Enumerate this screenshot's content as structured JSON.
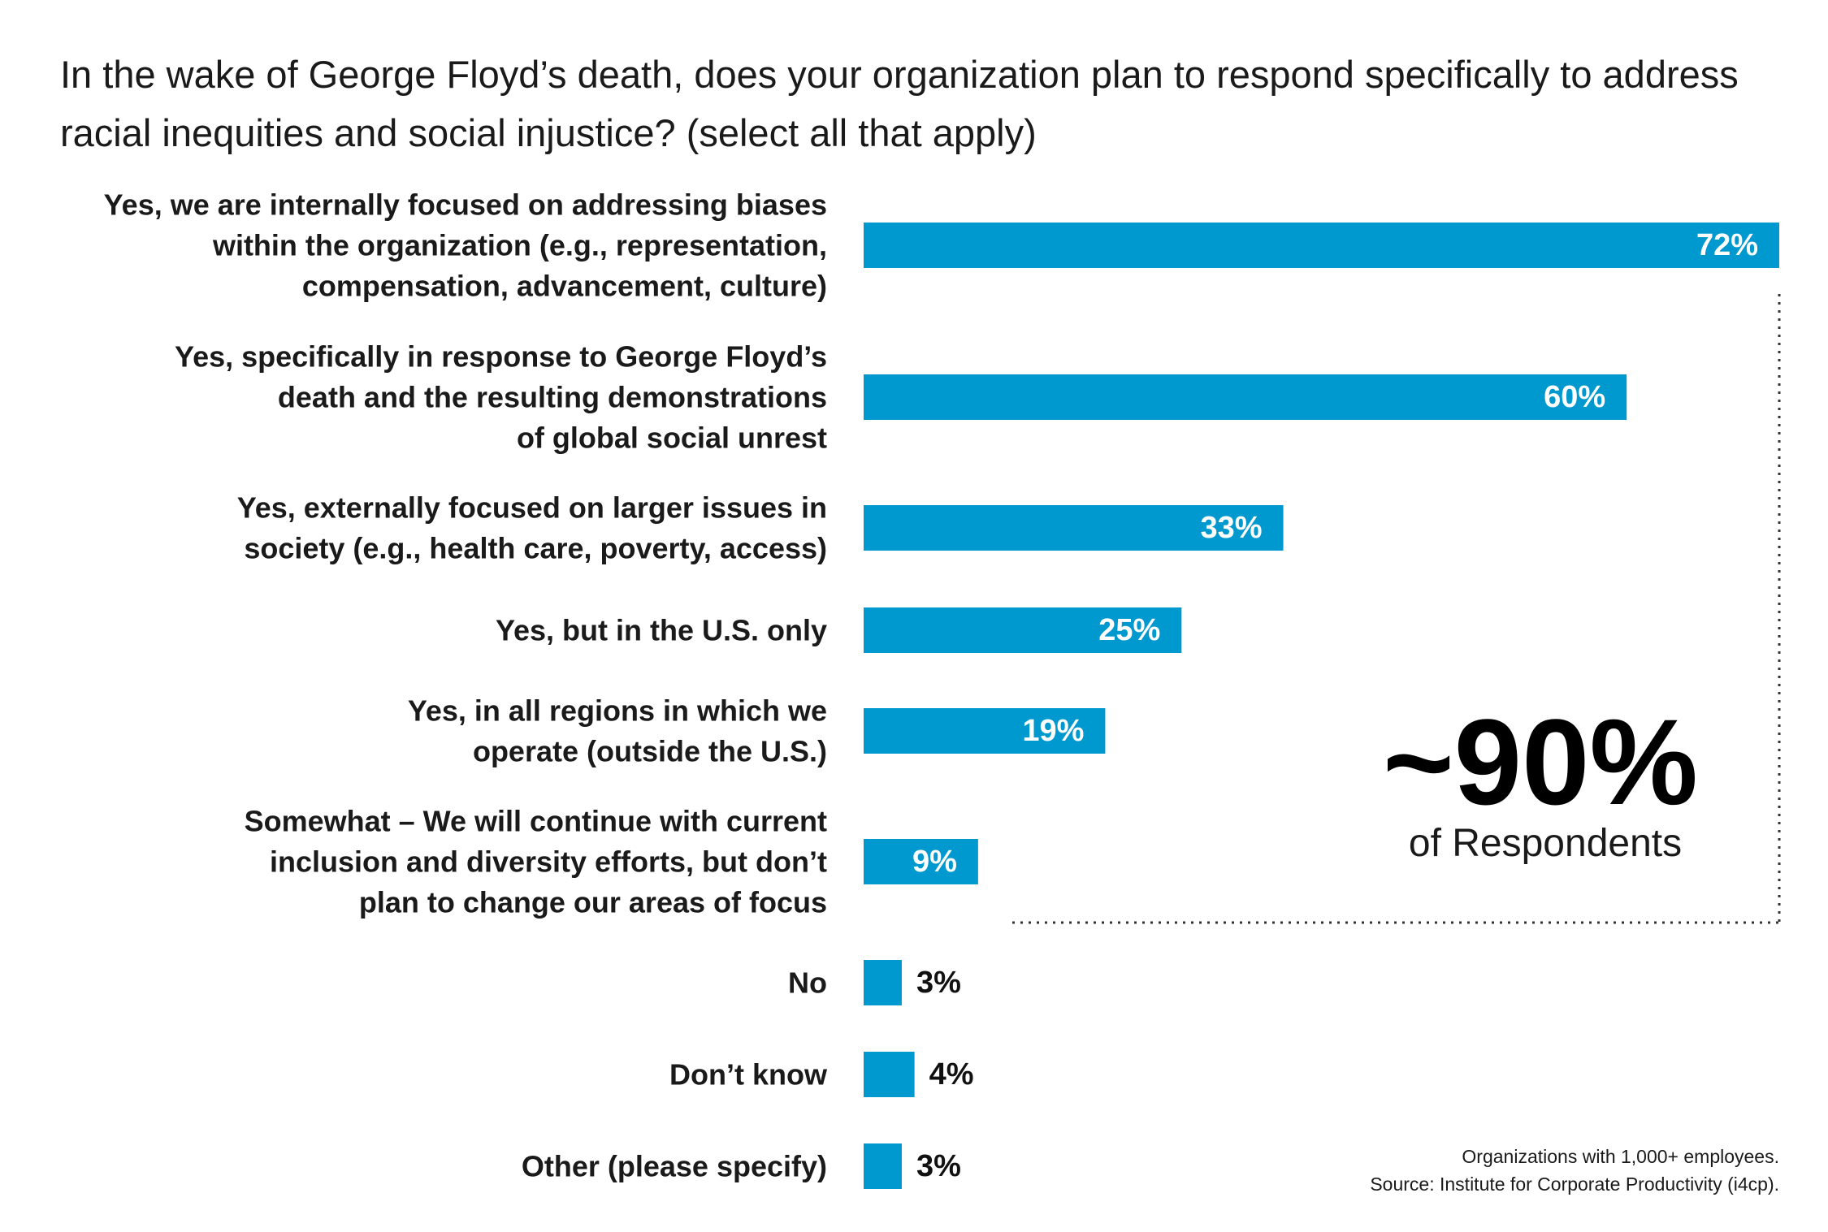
{
  "title": "In the wake of George Floyd’s death, does your organization plan to respond specifically to address racial inequities and social injustice? (select all that apply)",
  "colors": {
    "bar": "#0099cf",
    "text": "#1a1a1a",
    "bracket": "#333333"
  },
  "chart_data": {
    "type": "bar",
    "orientation": "horizontal",
    "categories": [
      [
        "Yes, we are internally focused on addressing biases",
        "within the organization (e.g., representation,",
        "compensation, advancement, culture)"
      ],
      [
        "Yes, specifically in response to George Floyd’s",
        "death and the resulting demonstrations",
        "of global social unrest"
      ],
      [
        "Yes, externally focused on larger issues in",
        "society (e.g., health care, poverty, access)"
      ],
      [
        "Yes, but in the U.S. only"
      ],
      [
        "Yes, in all regions in which we",
        "operate (outside the U.S.)"
      ],
      [
        "Somewhat – We will continue with current",
        "inclusion and diversity efforts, but don’t",
        "plan to change our areas of focus"
      ],
      [
        "No"
      ],
      [
        "Don’t know"
      ],
      [
        "Other (please specify)"
      ]
    ],
    "values": [
      72,
      60,
      33,
      25,
      19,
      9,
      3,
      4,
      3
    ],
    "value_labels": [
      "72%",
      "60%",
      "33%",
      "25%",
      "19%",
      "9%",
      "3%",
      "4%",
      "3%"
    ],
    "xlim": [
      0,
      72
    ],
    "grid": false,
    "legend": false
  },
  "callout": {
    "value": "~90%",
    "caption": "of Respondents"
  },
  "footnotes": [
    "Organizations with 1,000+ employees.",
    "Source: Institute for Corporate Productivity (i4cp)."
  ]
}
